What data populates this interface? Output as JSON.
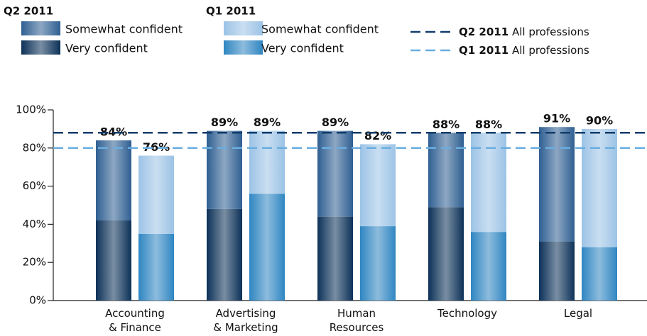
{
  "chart_data": {
    "type": "grouped_stacked_bar",
    "categories": [
      "Accounting\n& Finance",
      "Advertising\n& Marketing",
      "Human\nResources",
      "Technology",
      "Legal"
    ],
    "series": [
      {
        "group": "Q2 2011",
        "name": "Somewhat confident",
        "color": "#2f5f92",
        "values": [
          42,
          41,
          45,
          39,
          60
        ]
      },
      {
        "group": "Q2 2011",
        "name": "Very confident",
        "color": "#0c3158",
        "values": [
          42,
          48,
          44,
          49,
          31
        ]
      },
      {
        "group": "Q1 2011",
        "name": "Somewhat confident",
        "color": "#9cc3e6",
        "values": [
          41,
          33,
          43,
          52,
          62
        ]
      },
      {
        "group": "Q1 2011",
        "name": "Very confident",
        "color": "#2f86c2",
        "values": [
          35,
          56,
          39,
          36,
          28
        ]
      }
    ],
    "total_labels": [
      [
        "84%",
        "76%"
      ],
      [
        "89%",
        "89%"
      ],
      [
        "89%",
        "82%"
      ],
      [
        "88%",
        "88%"
      ],
      [
        "91%",
        "90%"
      ]
    ],
    "reference_lines": [
      {
        "group": "Q2 2011",
        "label": "All professions",
        "value": 88,
        "color": "#123d6b"
      },
      {
        "group": "Q1 2011",
        "label": "All professions",
        "value": 80,
        "color": "#6aaee0"
      }
    ],
    "ylim": [
      0,
      100
    ],
    "yticks": [
      {
        "value": 0,
        "label": "0%"
      },
      {
        "value": 20,
        "label": "20%"
      },
      {
        "value": 40,
        "label": "40%"
      },
      {
        "value": 60,
        "label": "60%"
      },
      {
        "value": 80,
        "label": "80%"
      },
      {
        "value": 100,
        "label": "100%"
      }
    ]
  }
}
